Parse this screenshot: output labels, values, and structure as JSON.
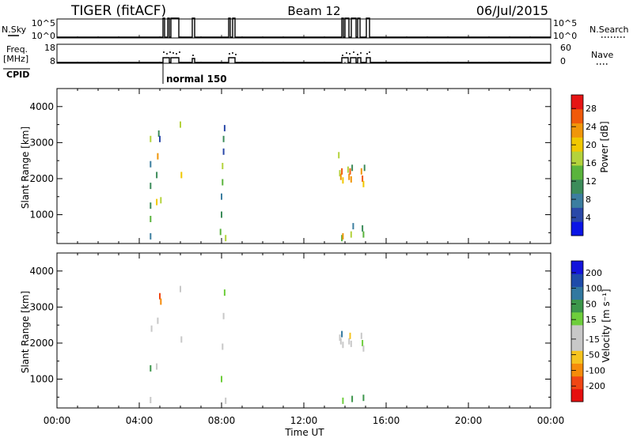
{
  "header": {
    "title": "TIGER (fitACF)",
    "beam": "Beam 12",
    "date": "06/Jul/2015"
  },
  "status_panels": {
    "nsky_label": "N.Sky",
    "nsky_ticks": [
      "10^5",
      "10^0"
    ],
    "nsearch_label": "N.Search",
    "nsearch_ticks": [
      "10^5",
      "10^0"
    ],
    "freq_label_1": "Freq.",
    "freq_label_2": "[MHz]",
    "freq_ticks": [
      "18",
      "8"
    ],
    "nave_label": "Nave",
    "nave_ticks": [
      "60",
      "0"
    ],
    "cpid_label": "CPID",
    "cpid_value": "normal 150"
  },
  "colors": {
    "power_scale": [
      "#0a14e6",
      "#2a48a8",
      "#3c7ea0",
      "#3c8c5a",
      "#5ab43c",
      "#b4d23c",
      "#f0c800",
      "#f0960a",
      "#f05a0a",
      "#e61414"
    ],
    "velocity_scale": [
      "#e60f0f",
      "#f04614",
      "#f58c0a",
      "#f5c31e",
      "#c8c8c8",
      "#c8c8c8",
      "#6ece3c",
      "#3c964b",
      "#3278a0",
      "#1e4baa",
      "#1414dc"
    ]
  },
  "chart_data": [
    {
      "type": "heatmap",
      "parameter": "power",
      "ylabel": "Slant Range [km]",
      "ylim": [
        200,
        4500
      ],
      "yticks": [
        "1000",
        "2000",
        "3000",
        "4000"
      ],
      "xlim": [
        0,
        24
      ],
      "colorbar_label": "Power [dB]",
      "colorbar_ticks": [
        "4",
        "8",
        "12",
        "16",
        "20",
        "24",
        "28"
      ],
      "clim": [
        0,
        31
      ],
      "cells": [
        [
          4.55,
          400,
          8
        ],
        [
          4.55,
          880,
          14
        ],
        [
          4.55,
          1250,
          10
        ],
        [
          4.55,
          1800,
          12
        ],
        [
          4.55,
          2400,
          8
        ],
        [
          4.55,
          3100,
          18
        ],
        [
          4.85,
          1350,
          20
        ],
        [
          4.85,
          2100,
          10
        ],
        [
          4.9,
          2620,
          24
        ],
        [
          4.95,
          3250,
          12
        ],
        [
          5.0,
          3100,
          6
        ],
        [
          5.05,
          1400,
          16
        ],
        [
          6.0,
          3500,
          18
        ],
        [
          6.05,
          2100,
          20
        ],
        [
          7.95,
          520,
          14
        ],
        [
          8.0,
          1000,
          12
        ],
        [
          8.0,
          1500,
          8
        ],
        [
          8.05,
          1900,
          14
        ],
        [
          8.05,
          2350,
          18
        ],
        [
          8.1,
          2750,
          6
        ],
        [
          8.1,
          3100,
          10
        ],
        [
          8.15,
          3400,
          4
        ],
        [
          8.2,
          350,
          16
        ],
        [
          13.7,
          2650,
          16
        ],
        [
          13.75,
          2150,
          16
        ],
        [
          13.8,
          2050,
          22
        ],
        [
          13.85,
          2200,
          26
        ],
        [
          13.9,
          1950,
          20
        ],
        [
          13.85,
          350,
          14
        ],
        [
          13.9,
          400,
          24
        ],
        [
          14.15,
          2250,
          18
        ],
        [
          14.2,
          2050,
          22
        ],
        [
          14.25,
          2200,
          26
        ],
        [
          14.3,
          1980,
          24
        ],
        [
          14.35,
          2300,
          12
        ],
        [
          14.3,
          450,
          16
        ],
        [
          14.4,
          680,
          8
        ],
        [
          14.8,
          2200,
          22
        ],
        [
          14.85,
          2000,
          26
        ],
        [
          14.9,
          1850,
          20
        ],
        [
          14.95,
          2300,
          12
        ],
        [
          14.9,
          450,
          14
        ],
        [
          14.85,
          620,
          10
        ]
      ]
    },
    {
      "type": "heatmap",
      "parameter": "velocity",
      "ylabel": "Slant Range [km]",
      "ylim": [
        200,
        4500
      ],
      "yticks": [
        "1000",
        "2000",
        "3000",
        "4000"
      ],
      "xlim": [
        0,
        24
      ],
      "xticks": [
        "00:00",
        "04:00",
        "08:00",
        "12:00",
        "16:00",
        "20:00",
        "00:00"
      ],
      "xlabel": "Time UT",
      "colorbar_label": "Velocity [m s⁻¹]",
      "colorbar_ticks": [
        "-200",
        "-100",
        "-50",
        "-15",
        "15",
        "50",
        "100",
        "200"
      ],
      "clim": [
        -250,
        250
      ],
      "cells": [
        [
          4.55,
          420,
          -5
        ],
        [
          4.55,
          1300,
          80
        ],
        [
          4.6,
          2400,
          -40
        ],
        [
          4.85,
          1350,
          -30
        ],
        [
          4.9,
          2620,
          -20
        ],
        [
          5.0,
          3300,
          -180
        ],
        [
          5.05,
          3150,
          -120
        ],
        [
          6.0,
          3500,
          10
        ],
        [
          6.05,
          2100,
          -8
        ],
        [
          8.0,
          1000,
          60
        ],
        [
          8.05,
          1900,
          20
        ],
        [
          8.1,
          2750,
          -10
        ],
        [
          8.15,
          3400,
          40
        ],
        [
          8.2,
          400,
          10
        ],
        [
          13.75,
          2150,
          8
        ],
        [
          13.8,
          2050,
          -5
        ],
        [
          13.85,
          2250,
          120
        ],
        [
          13.9,
          1950,
          -8
        ],
        [
          13.9,
          400,
          60
        ],
        [
          14.2,
          2050,
          5
        ],
        [
          14.25,
          2200,
          -80
        ],
        [
          14.3,
          1980,
          10
        ],
        [
          14.35,
          450,
          70
        ],
        [
          14.8,
          2200,
          -6
        ],
        [
          14.85,
          2000,
          40
        ],
        [
          14.9,
          1850,
          5
        ],
        [
          14.9,
          480,
          90
        ]
      ]
    }
  ]
}
